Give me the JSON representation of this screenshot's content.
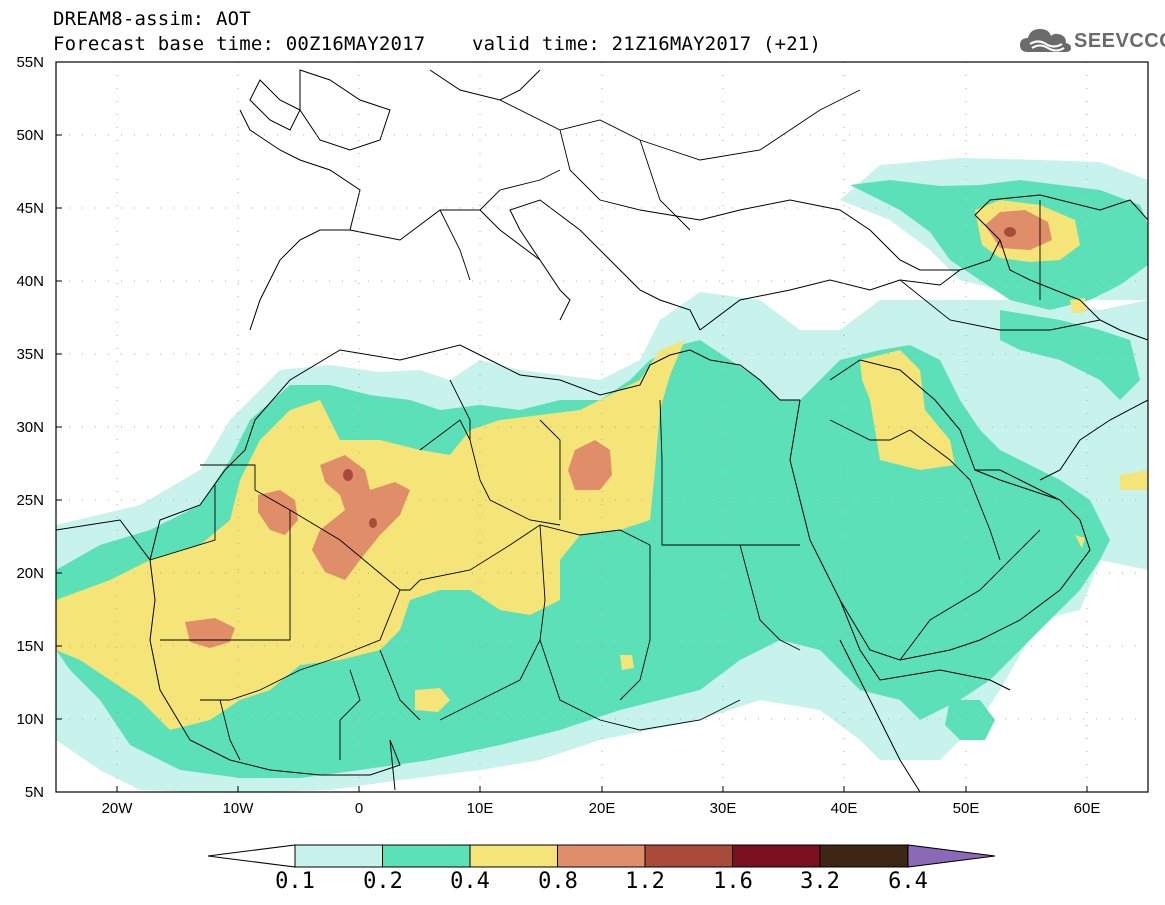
{
  "header": {
    "title_line1": "DREAM8-assim: AOT",
    "title_line2": "Forecast base time: 00Z16MAY2017    valid time: 21Z16MAY2017 (+21)"
  },
  "logo": {
    "text": "SEEVCCC",
    "icon": "cloud-icon",
    "color": "#6b6b6b"
  },
  "map": {
    "lon_range": [
      -25,
      65
    ],
    "lat_range": [
      5,
      55
    ],
    "lat_labels": [
      "55N",
      "50N",
      "45N",
      "40N",
      "35N",
      "30N",
      "25N",
      "20N",
      "15N",
      "10N",
      "5N"
    ],
    "lon_labels": [
      "20W",
      "10W",
      "0",
      "10E",
      "20E",
      "30E",
      "40E",
      "50E",
      "60E"
    ]
  },
  "legend": {
    "levels": [
      "0.1",
      "0.2",
      "0.4",
      "0.8",
      "1.2",
      "1.6",
      "3.2",
      "6.4"
    ],
    "colors": [
      "#c8f2ec",
      "#5ce0b8",
      "#f5e478",
      "#e08e6a",
      "#aa4a3a",
      "#7a0f20",
      "#3e2614",
      "#8a6ab8"
    ],
    "under_color": "#ffffff"
  }
}
